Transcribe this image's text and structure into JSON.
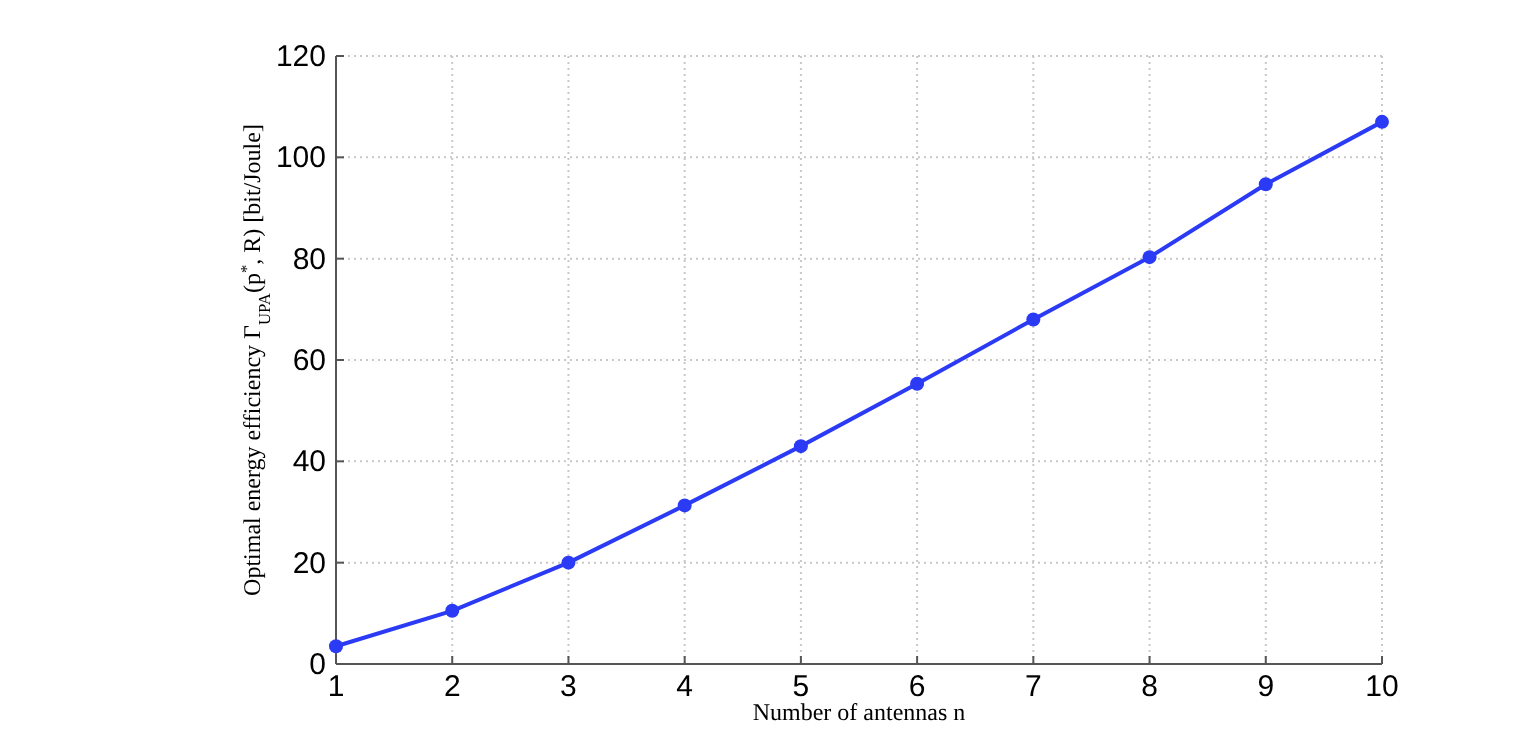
{
  "chart_data": {
    "type": "line",
    "xlabel": "Number of antennas n",
    "ylabel": "Optimal energy efficiency Γ$_{UPA}$(p$^{*}$, R) [bit/Joule]",
    "x": [
      1,
      2,
      3,
      4,
      5,
      6,
      7,
      8,
      9,
      10
    ],
    "series": [
      {
        "color": "#2b3bf5",
        "values": [
          3.5,
          10.5,
          20,
          31.3,
          43,
          55.3,
          68,
          80.3,
          94.7,
          107
        ]
      }
    ],
    "xlim": [
      1,
      10
    ],
    "xticks": [
      1,
      2,
      3,
      4,
      5,
      6,
      7,
      8,
      9,
      10
    ],
    "ylim": [
      0,
      120
    ],
    "yticks": [
      0,
      20,
      40,
      60,
      80,
      100,
      120
    ],
    "grid": true,
    "marker": "circle",
    "line_style": "solid"
  }
}
